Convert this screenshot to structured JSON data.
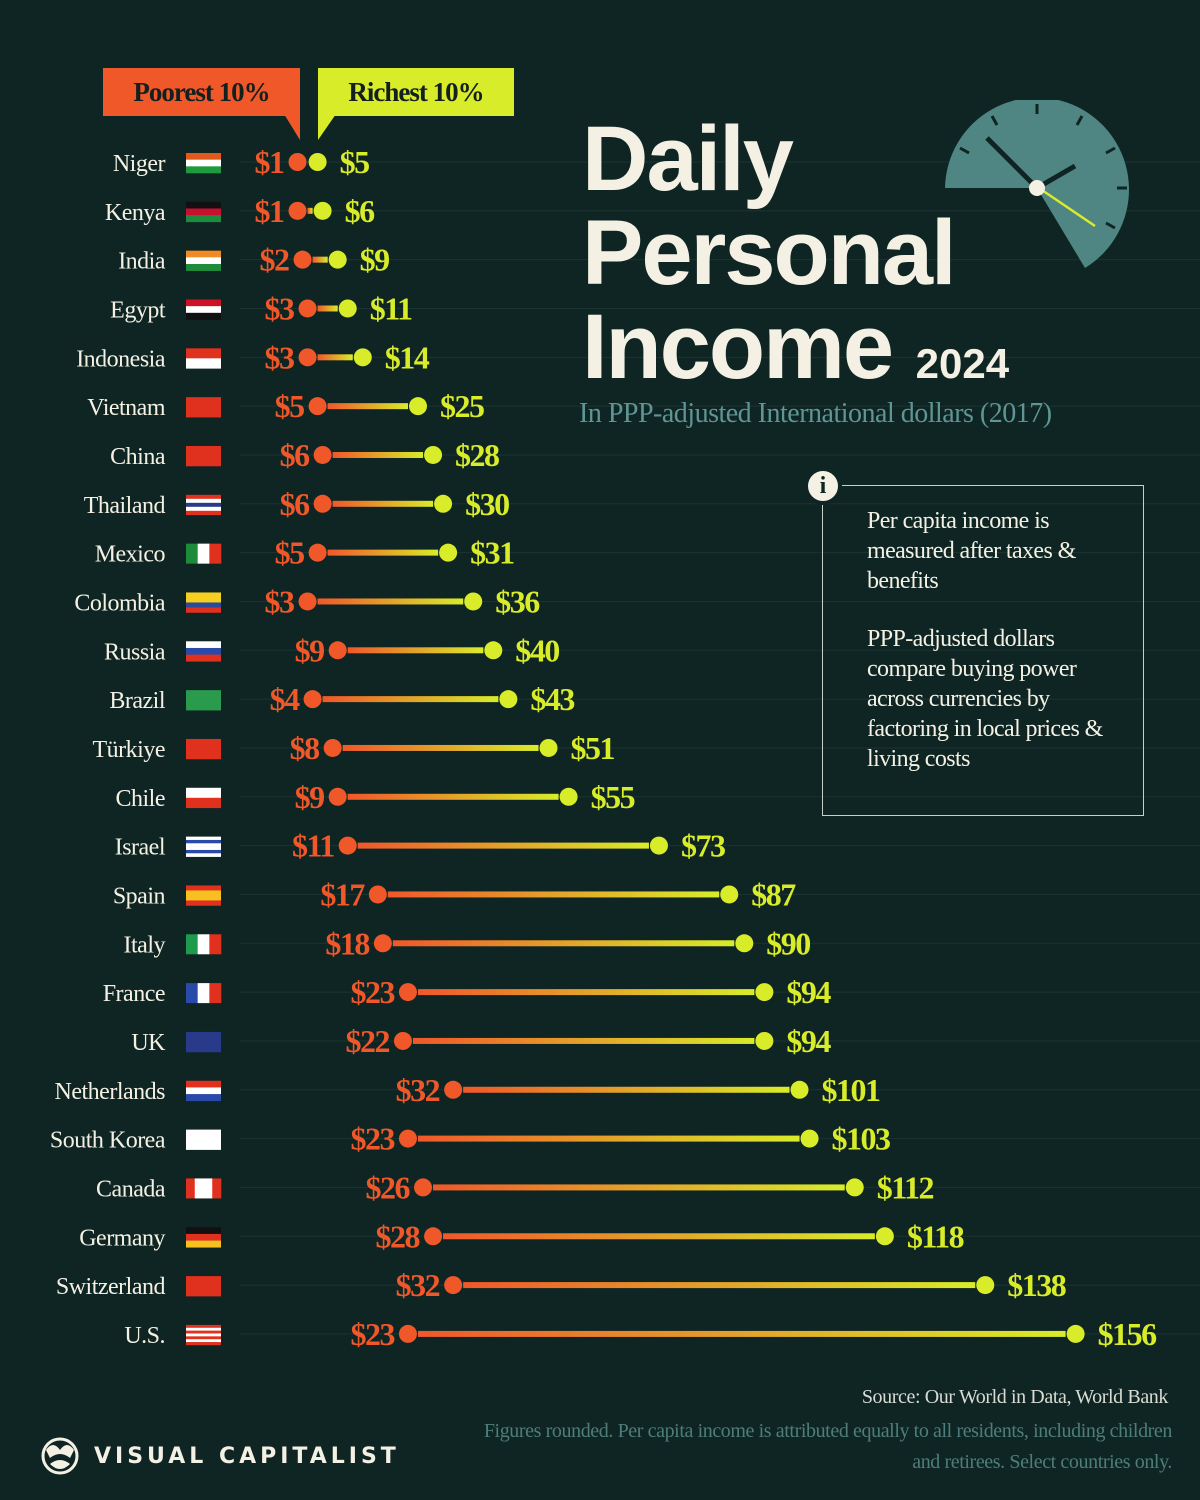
{
  "title": {
    "line1": "Daily",
    "line2": "Personal",
    "line3": "Income",
    "year": "2024"
  },
  "subtitle": "In PPP-adjusted International dollars (2017)",
  "legend": {
    "poorest": "Poorest 10%",
    "richest": "Richest 10%"
  },
  "colors": {
    "background": "#0f2523",
    "poorest": "#f0582a",
    "richest": "#d8ec2a",
    "clock": "#4f8583"
  },
  "info": {
    "icon": "info-icon",
    "p1": "Per capita income is measured after taxes & benefits",
    "p2": "PPP-adjusted dollars compare buying power across currencies by factoring in local prices & living costs"
  },
  "footer": {
    "source": "Source: Our World in Data, World Bank",
    "note": "Figures rounded. Per capita income is attributed equally to all residents, including children and retirees. Select countries only.",
    "brand": "VISUAL CAPITALIST"
  },
  "chart_data": {
    "type": "dumbbell",
    "unit": "$",
    "series": [
      {
        "name": "Poorest 10%"
      },
      {
        "name": "Richest 10%"
      }
    ],
    "rows": [
      {
        "country": "Niger",
        "poorest": 1,
        "richest": 5,
        "flag": {
          "dir": "h",
          "colors": [
            "#e05a1e",
            "#ffffff",
            "#1e9a3c"
          ]
        }
      },
      {
        "country": "Kenya",
        "poorest": 1,
        "richest": 6,
        "flag": {
          "dir": "h",
          "colors": [
            "#111111",
            "#c8102e",
            "#1e8a3c"
          ]
        }
      },
      {
        "country": "India",
        "poorest": 2,
        "richest": 9,
        "flag": {
          "dir": "h",
          "colors": [
            "#f08a24",
            "#ffffff",
            "#1e8a3c"
          ]
        }
      },
      {
        "country": "Egypt",
        "poorest": 3,
        "richest": 11,
        "flag": {
          "dir": "h",
          "colors": [
            "#ce1126",
            "#ffffff",
            "#111111"
          ]
        }
      },
      {
        "country": "Indonesia",
        "poorest": 3,
        "richest": 14,
        "flag": {
          "dir": "h",
          "colors": [
            "#e0301e",
            "#ffffff"
          ]
        }
      },
      {
        "country": "Vietnam",
        "poorest": 5,
        "richest": 25,
        "flag": {
          "dir": "h",
          "colors": [
            "#e0301e"
          ]
        }
      },
      {
        "country": "China",
        "poorest": 6,
        "richest": 28,
        "flag": {
          "dir": "h",
          "colors": [
            "#e0301e"
          ]
        }
      },
      {
        "country": "Thailand",
        "poorest": 6,
        "richest": 30,
        "flag": {
          "dir": "h",
          "colors": [
            "#e0301e",
            "#ffffff",
            "#2a3a8a",
            "#ffffff",
            "#e0301e"
          ]
        }
      },
      {
        "country": "Mexico",
        "poorest": 5,
        "richest": 31,
        "flag": {
          "dir": "v",
          "colors": [
            "#1e8a3c",
            "#ffffff",
            "#e0301e"
          ]
        }
      },
      {
        "country": "Colombia",
        "poorest": 3,
        "richest": 36,
        "flag": {
          "dir": "h",
          "colors": [
            "#f5d020",
            "#f5d020",
            "#2a4a9a",
            "#e0301e"
          ]
        }
      },
      {
        "country": "Russia",
        "poorest": 9,
        "richest": 40,
        "flag": {
          "dir": "h",
          "colors": [
            "#ffffff",
            "#2a4aaa",
            "#e0301e"
          ]
        }
      },
      {
        "country": "Brazil",
        "poorest": 4,
        "richest": 43,
        "flag": {
          "dir": "h",
          "colors": [
            "#2a9a4c"
          ]
        }
      },
      {
        "country": "Türkiye",
        "poorest": 8,
        "richest": 51,
        "flag": {
          "dir": "h",
          "colors": [
            "#e0301e"
          ]
        }
      },
      {
        "country": "Chile",
        "poorest": 9,
        "richest": 55,
        "flag": {
          "dir": "h",
          "colors": [
            "#ffffff",
            "#e0301e"
          ]
        }
      },
      {
        "country": "Israel",
        "poorest": 11,
        "richest": 73,
        "flag": {
          "dir": "h",
          "colors": [
            "#ffffff",
            "#2a4aaa",
            "#ffffff",
            "#ffffff",
            "#2a4aaa",
            "#ffffff"
          ]
        }
      },
      {
        "country": "Spain",
        "poorest": 17,
        "richest": 87,
        "flag": {
          "dir": "h",
          "colors": [
            "#e0301e",
            "#f5c020",
            "#f5c020",
            "#e0301e"
          ]
        }
      },
      {
        "country": "Italy",
        "poorest": 18,
        "richest": 90,
        "flag": {
          "dir": "v",
          "colors": [
            "#1e9a4c",
            "#ffffff",
            "#e0301e"
          ]
        }
      },
      {
        "country": "France",
        "poorest": 23,
        "richest": 94,
        "flag": {
          "dir": "v",
          "colors": [
            "#2a4aaa",
            "#ffffff",
            "#e0301e"
          ]
        }
      },
      {
        "country": "UK",
        "poorest": 22,
        "richest": 94,
        "flag": {
          "dir": "h",
          "colors": [
            "#2a3a8a"
          ]
        }
      },
      {
        "country": "Netherlands",
        "poorest": 32,
        "richest": 101,
        "flag": {
          "dir": "h",
          "colors": [
            "#e0301e",
            "#ffffff",
            "#2a4aaa"
          ]
        }
      },
      {
        "country": "South Korea",
        "poorest": 23,
        "richest": 103,
        "flag": {
          "dir": "h",
          "colors": [
            "#ffffff"
          ]
        }
      },
      {
        "country": "Canada",
        "poorest": 26,
        "richest": 112,
        "flag": {
          "dir": "v",
          "colors": [
            "#e0301e",
            "#ffffff",
            "#ffffff",
            "#e0301e"
          ]
        }
      },
      {
        "country": "Germany",
        "poorest": 28,
        "richest": 118,
        "flag": {
          "dir": "h",
          "colors": [
            "#111111",
            "#e0301e",
            "#f5c020"
          ]
        }
      },
      {
        "country": "Switzerland",
        "poorest": 32,
        "richest": 138,
        "flag": {
          "dir": "h",
          "colors": [
            "#e0301e"
          ]
        }
      },
      {
        "country": "U.S.",
        "poorest": 23,
        "richest": 156,
        "flag": {
          "dir": "h",
          "colors": [
            "#e0301e",
            "#ffffff",
            "#e0301e",
            "#ffffff",
            "#e0301e",
            "#ffffff",
            "#e0301e"
          ]
        }
      }
    ]
  }
}
